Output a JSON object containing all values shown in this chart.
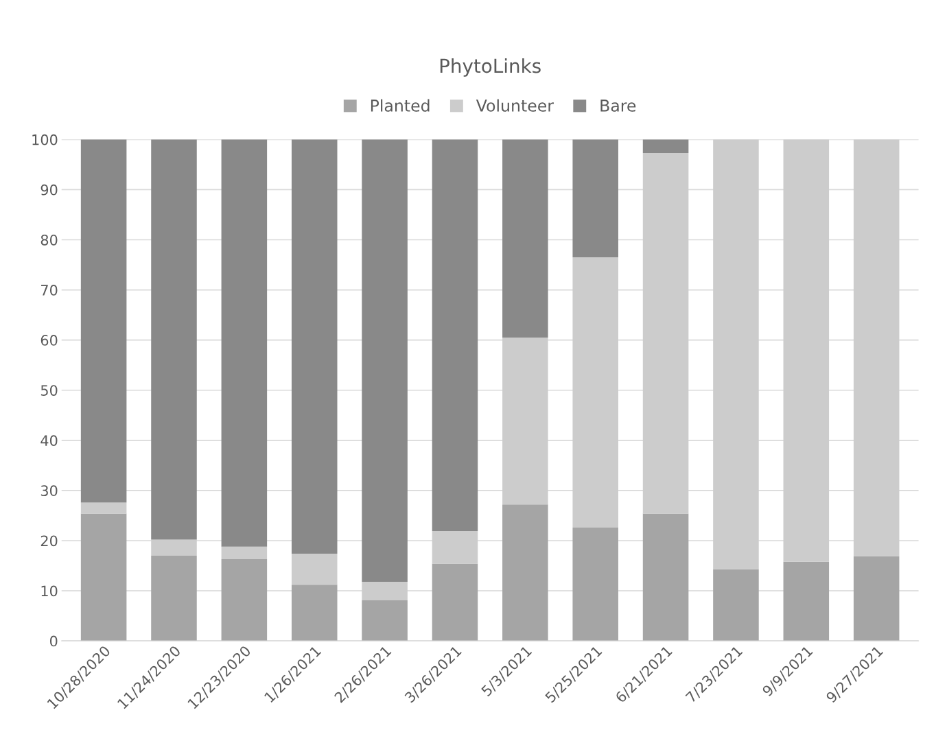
{
  "chart_data": {
    "type": "bar",
    "title": "PhytoLinks",
    "stacked": true,
    "categories": [
      "10/28/2020",
      "11/24/2020",
      "12/23/2020",
      "1/26/2021",
      "2/26/2021",
      "3/26/2021",
      "5/3/2021",
      "5/25/2021",
      "6/21/2021",
      "7/23/2021",
      "9/9/2021",
      "9/27/2021"
    ],
    "series": [
      {
        "name": "Planted",
        "color": "#a5a5a5",
        "values": [
          25.4,
          17.0,
          16.3,
          11.2,
          8.1,
          15.4,
          27.2,
          22.6,
          25.4,
          14.3,
          15.8,
          16.9
        ]
      },
      {
        "name": "Volunteer",
        "color": "#cccccc",
        "values": [
          2.2,
          3.2,
          2.5,
          6.2,
          3.7,
          6.5,
          33.3,
          53.9,
          71.9,
          85.7,
          84.2,
          83.1
        ]
      },
      {
        "name": "Bare",
        "color": "#898989",
        "values": [
          72.4,
          79.8,
          81.2,
          82.6,
          88.2,
          78.1,
          39.5,
          23.5,
          2.7,
          null,
          null,
          null
        ]
      }
    ],
    "ylim": [
      0,
      100
    ],
    "yticks": [
      0,
      10,
      20,
      30,
      40,
      50,
      60,
      70,
      80,
      90,
      100
    ],
    "grid": "y",
    "legend": "top"
  }
}
